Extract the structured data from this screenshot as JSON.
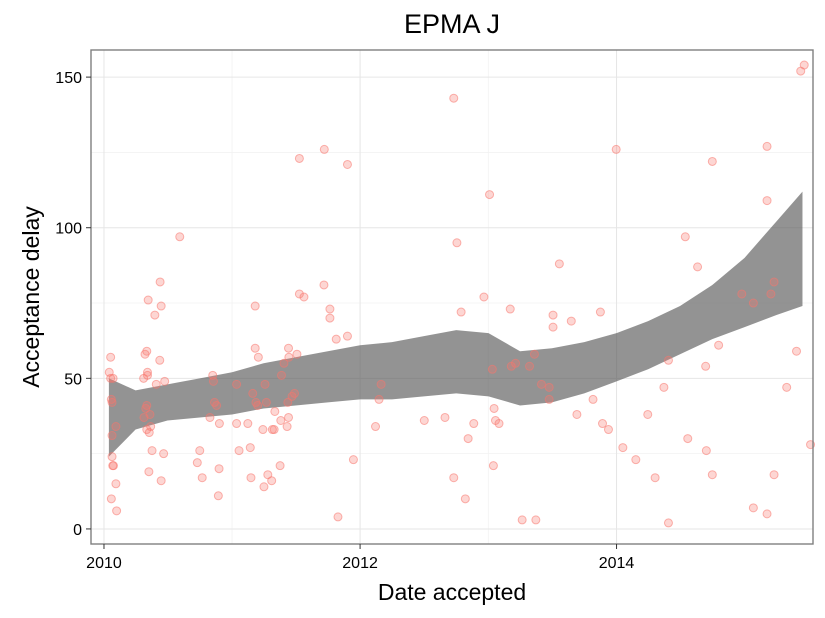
{
  "chart_data": {
    "type": "scatter",
    "title": "EPMA J",
    "xlabel": "Date accepted",
    "ylabel": "Acceptance delay",
    "xlim": [
      "2009-11-25",
      "2015-07-15"
    ],
    "ylim": [
      -5,
      159
    ],
    "x_ticks": [
      {
        "value": "2010-01-01",
        "label": "2010"
      },
      {
        "value": "2012-01-01",
        "label": "2012"
      },
      {
        "value": "2014-01-01",
        "label": "2014"
      }
    ],
    "y_ticks": [
      {
        "value": 0,
        "label": "0"
      },
      {
        "value": 50,
        "label": "50"
      },
      {
        "value": 100,
        "label": "100"
      },
      {
        "value": 150,
        "label": "150"
      }
    ],
    "grid": true,
    "point_color": "#f8766d",
    "band_color": "#595959",
    "series": [
      {
        "kind": "points",
        "points": [
          [
            "2010-01-16",
            52
          ],
          [
            "2010-01-20",
            57
          ],
          [
            "2010-01-20",
            50
          ],
          [
            "2010-01-22",
            43
          ],
          [
            "2010-01-24",
            42
          ],
          [
            "2010-01-24",
            31
          ],
          [
            "2010-01-26",
            21
          ],
          [
            "2010-01-28",
            21
          ],
          [
            "2010-01-24",
            24
          ],
          [
            "2010-01-22",
            10
          ],
          [
            "2010-02-04",
            15
          ],
          [
            "2010-02-06",
            6
          ],
          [
            "2010-02-04",
            34
          ],
          [
            "2010-01-27",
            50
          ],
          [
            "2010-04-24",
            50
          ],
          [
            "2010-04-25",
            37
          ],
          [
            "2010-04-30",
            40
          ],
          [
            "2010-05-03",
            41
          ],
          [
            "2010-05-05",
            51
          ],
          [
            "2010-05-03",
            59
          ],
          [
            "2010-05-05",
            52
          ],
          [
            "2010-04-28",
            58
          ],
          [
            "2010-05-07",
            76
          ],
          [
            "2010-05-12",
            38
          ],
          [
            "2010-05-03",
            33
          ],
          [
            "2010-05-10",
            32
          ],
          [
            "2010-05-14",
            34
          ],
          [
            "2010-05-09",
            19
          ],
          [
            "2010-05-18",
            26
          ],
          [
            "2010-05-26",
            71
          ],
          [
            "2010-05-30",
            48
          ],
          [
            "2010-06-09",
            56
          ],
          [
            "2010-06-10",
            82
          ],
          [
            "2010-06-13",
            74
          ],
          [
            "2010-06-23",
            49
          ],
          [
            "2010-06-13",
            16
          ],
          [
            "2010-06-20",
            25
          ],
          [
            "2010-08-05",
            97
          ],
          [
            "2010-09-24",
            22
          ],
          [
            "2010-10-01",
            26
          ],
          [
            "2010-10-08",
            17
          ],
          [
            "2010-10-30",
            37
          ],
          [
            "2010-11-07",
            51
          ],
          [
            "2010-11-09",
            49
          ],
          [
            "2010-11-12",
            42
          ],
          [
            "2010-11-18",
            41
          ],
          [
            "2010-11-25",
            20
          ],
          [
            "2010-11-23",
            11
          ],
          [
            "2010-11-26",
            35
          ],
          [
            "2011-01-14",
            48
          ],
          [
            "2011-01-14",
            35
          ],
          [
            "2011-01-21",
            26
          ],
          [
            "2011-02-24",
            17
          ],
          [
            "2011-02-22",
            27
          ],
          [
            "2011-02-15",
            35
          ],
          [
            "2011-03-01",
            45
          ],
          [
            "2011-03-08",
            74
          ],
          [
            "2011-03-08",
            60
          ],
          [
            "2011-03-10",
            42
          ],
          [
            "2011-03-15",
            41
          ],
          [
            "2011-03-17",
            57
          ],
          [
            "2011-03-30",
            33
          ],
          [
            "2011-04-02",
            14
          ],
          [
            "2011-04-05",
            48
          ],
          [
            "2011-04-09",
            42
          ],
          [
            "2011-04-13",
            18
          ],
          [
            "2011-04-24",
            16
          ],
          [
            "2011-04-26",
            33
          ],
          [
            "2011-05-01",
            33
          ],
          [
            "2011-05-03",
            39
          ],
          [
            "2011-05-20",
            36
          ],
          [
            "2011-05-18",
            21
          ],
          [
            "2011-05-22",
            51
          ],
          [
            "2011-05-29",
            55
          ],
          [
            "2011-06-07",
            34
          ],
          [
            "2011-06-11",
            60
          ],
          [
            "2011-06-12",
            57
          ],
          [
            "2011-06-09",
            42
          ],
          [
            "2011-06-11",
            37
          ],
          [
            "2011-06-21",
            44
          ],
          [
            "2011-06-28",
            45
          ],
          [
            "2011-07-05",
            58
          ],
          [
            "2011-07-12",
            123
          ],
          [
            "2011-07-12",
            78
          ],
          [
            "2011-07-25",
            77
          ],
          [
            "2011-09-21",
            126
          ],
          [
            "2011-09-20",
            81
          ],
          [
            "2011-10-07",
            73
          ],
          [
            "2011-10-07",
            70
          ],
          [
            "2011-10-25",
            63
          ],
          [
            "2011-10-30",
            4
          ],
          [
            "2011-11-26",
            64
          ],
          [
            "2011-11-26",
            121
          ],
          [
            "2011-12-13",
            23
          ],
          [
            "2012-02-14",
            34
          ],
          [
            "2012-02-24",
            43
          ],
          [
            "2012-03-01",
            48
          ],
          [
            "2012-07-02",
            36
          ],
          [
            "2012-08-30",
            37
          ],
          [
            "2012-09-24",
            143
          ],
          [
            "2012-09-24",
            17
          ],
          [
            "2012-10-03",
            95
          ],
          [
            "2012-10-15",
            72
          ],
          [
            "2012-10-27",
            10
          ],
          [
            "2012-11-04",
            30
          ],
          [
            "2012-11-20",
            35
          ],
          [
            "2012-12-19",
            77
          ],
          [
            "2013-01-04",
            111
          ],
          [
            "2013-01-12",
            53
          ],
          [
            "2013-01-15",
            21
          ],
          [
            "2013-01-17",
            40
          ],
          [
            "2013-01-21",
            36
          ],
          [
            "2013-01-31",
            35
          ],
          [
            "2013-03-04",
            73
          ],
          [
            "2013-03-07",
            54
          ],
          [
            "2013-03-19",
            55
          ],
          [
            "2013-04-07",
            3
          ],
          [
            "2013-04-28",
            54
          ],
          [
            "2013-05-12",
            58
          ],
          [
            "2013-05-16",
            3
          ],
          [
            "2013-06-01",
            48
          ],
          [
            "2013-06-23",
            47
          ],
          [
            "2013-06-23",
            43
          ],
          [
            "2013-07-04",
            71
          ],
          [
            "2013-07-04",
            67
          ],
          [
            "2013-07-22",
            88
          ],
          [
            "2013-08-25",
            69
          ],
          [
            "2013-09-10",
            38
          ],
          [
            "2013-10-26",
            43
          ],
          [
            "2013-11-16",
            72
          ],
          [
            "2013-11-22",
            35
          ],
          [
            "2013-12-09",
            33
          ],
          [
            "2013-12-31",
            126
          ],
          [
            "2014-01-19",
            27
          ],
          [
            "2014-02-25",
            23
          ],
          [
            "2014-03-31",
            38
          ],
          [
            "2014-04-21",
            17
          ],
          [
            "2014-05-16",
            47
          ],
          [
            "2014-05-29",
            56
          ],
          [
            "2014-05-29",
            2
          ],
          [
            "2014-07-16",
            97
          ],
          [
            "2014-07-23",
            30
          ],
          [
            "2014-08-20",
            87
          ],
          [
            "2014-09-12",
            54
          ],
          [
            "2014-09-14",
            26
          ],
          [
            "2014-10-01",
            122
          ],
          [
            "2014-10-01",
            18
          ],
          [
            "2014-10-19",
            61
          ],
          [
            "2014-12-24",
            78
          ],
          [
            "2015-01-26",
            75
          ],
          [
            "2015-01-26",
            7
          ],
          [
            "2015-03-06",
            127
          ],
          [
            "2015-03-06",
            109
          ],
          [
            "2015-03-06",
            5
          ],
          [
            "2015-03-17",
            78
          ],
          [
            "2015-03-26",
            82
          ],
          [
            "2015-03-26",
            18
          ],
          [
            "2015-05-01",
            47
          ],
          [
            "2015-05-29",
            59
          ],
          [
            "2015-06-10",
            152
          ],
          [
            "2015-06-20",
            154
          ],
          [
            "2015-07-08",
            28
          ]
        ]
      },
      {
        "kind": "smooth-band",
        "x": [
          "2010-01-15",
          "2010-04-01",
          "2010-07-01",
          "2010-10-01",
          "2011-01-01",
          "2011-04-01",
          "2011-07-01",
          "2011-10-01",
          "2012-01-01",
          "2012-04-01",
          "2012-07-01",
          "2012-10-01",
          "2013-01-01",
          "2013-04-01",
          "2013-07-01",
          "2013-10-01",
          "2014-01-01",
          "2014-04-01",
          "2014-07-01",
          "2014-10-01",
          "2015-01-01",
          "2015-04-01",
          "2015-06-15"
        ],
        "ymin": [
          24,
          33,
          36,
          37,
          38,
          40,
          41,
          42,
          43,
          43,
          44,
          45,
          44,
          41,
          42,
          45,
          49,
          53,
          58,
          63,
          67,
          71,
          74
        ],
        "ymax": [
          50,
          46,
          48,
          50,
          52,
          55,
          57,
          59,
          61,
          62,
          64,
          66,
          65,
          59,
          60,
          62,
          65,
          69,
          74,
          81,
          90,
          102,
          112
        ]
      }
    ]
  }
}
